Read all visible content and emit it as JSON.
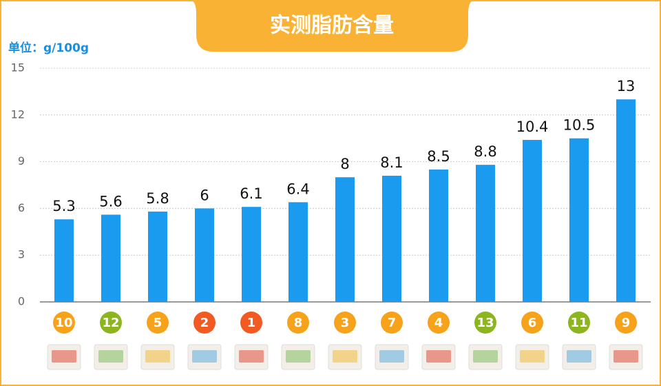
{
  "chart_data": {
    "type": "bar",
    "title": "实测脂肪含量",
    "y_label": "单位：g/100g",
    "categories": [
      "10",
      "12",
      "5",
      "2",
      "1",
      "8",
      "3",
      "7",
      "4",
      "13",
      "6",
      "11",
      "9"
    ],
    "badge_colors": [
      "#f7a21b",
      "#8cb520",
      "#f7a21b",
      "#f15a22",
      "#f15a22",
      "#f7a21b",
      "#f7a21b",
      "#f7a21b",
      "#f7a21b",
      "#8cb520",
      "#f7a21b",
      "#8cb520",
      "#f7a21b"
    ],
    "values": [
      5.3,
      5.6,
      5.8,
      6,
      6.1,
      6.4,
      8,
      8.1,
      8.5,
      8.8,
      10.4,
      10.5,
      13
    ],
    "color": "#1a9bf0",
    "ylim": [
      0,
      15
    ],
    "yticks": [
      0,
      3,
      6,
      9,
      12,
      15
    ],
    "grid": true
  }
}
